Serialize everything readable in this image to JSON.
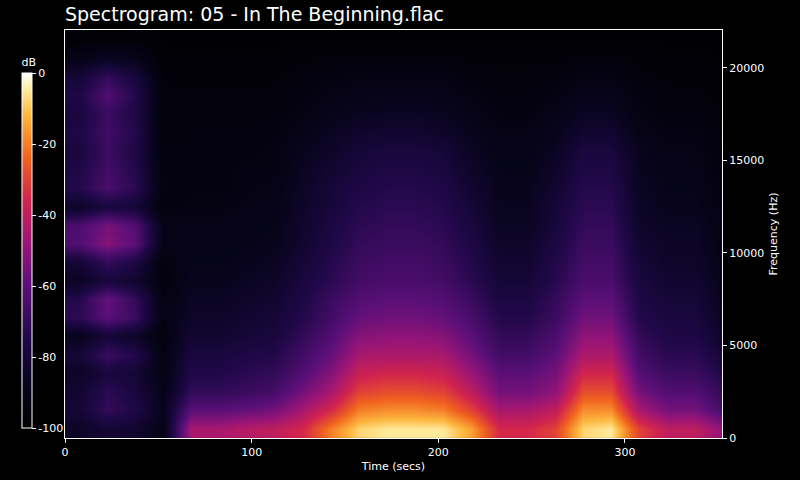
{
  "chart_data": {
    "type": "heatmap",
    "title": "Spectrogram: 05 - In The Beginning.flac",
    "x_label": "Time (secs)",
    "y_label": "Frequency (Hz)",
    "x": [
      7.5,
      22.5,
      37.5,
      52.5,
      67.5,
      82.5,
      97.5,
      112.5,
      127.5,
      142.5,
      157.5,
      172.5,
      187.5,
      202.5,
      217.5,
      232.5,
      247.5,
      262.5,
      277.5,
      292.5,
      307.5,
      322.5,
      337.5,
      352.5
    ],
    "y": [
      500,
      1500,
      2500,
      3500,
      4500,
      5500,
      6500,
      7500,
      8500,
      9500,
      10500,
      11500,
      12500,
      13500,
      14500,
      15500,
      16500,
      17500,
      18500,
      19500,
      20500,
      21500
    ],
    "z": [
      [
        -85,
        -80,
        -82,
        -90,
        -45,
        -45,
        -42,
        -40,
        -35,
        -20,
        -8,
        -5,
        -5,
        -5,
        -15,
        -35,
        -35,
        -30,
        -8,
        -5,
        -30,
        -40,
        -40,
        -50
      ],
      [
        -80,
        -70,
        -75,
        -88,
        -60,
        -60,
        -58,
        -55,
        -45,
        -35,
        -20,
        -18,
        -18,
        -20,
        -30,
        -45,
        -45,
        -40,
        -18,
        -18,
        -45,
        -55,
        -55,
        -65
      ],
      [
        -82,
        -72,
        -78,
        -90,
        -70,
        -70,
        -68,
        -65,
        -55,
        -45,
        -30,
        -28,
        -28,
        -30,
        -40,
        -55,
        -55,
        -50,
        -28,
        -28,
        -55,
        -62,
        -62,
        -70
      ],
      [
        -85,
        -78,
        -80,
        -92,
        -75,
        -75,
        -72,
        -70,
        -62,
        -52,
        -38,
        -36,
        -36,
        -38,
        -48,
        -60,
        -60,
        -55,
        -36,
        -36,
        -62,
        -68,
        -68,
        -75
      ],
      [
        -80,
        -68,
        -74,
        -92,
        -78,
        -78,
        -76,
        -74,
        -66,
        -58,
        -45,
        -44,
        -44,
        -45,
        -55,
        -66,
        -66,
        -60,
        -44,
        -44,
        -66,
        -72,
        -72,
        -80
      ],
      [
        -88,
        -80,
        -84,
        -94,
        -82,
        -82,
        -80,
        -78,
        -70,
        -62,
        -52,
        -50,
        -50,
        -52,
        -60,
        -70,
        -70,
        -64,
        -50,
        -50,
        -70,
        -76,
        -76,
        -84
      ],
      [
        -72,
        -60,
        -68,
        -92,
        -84,
        -84,
        -82,
        -80,
        -74,
        -66,
        -58,
        -56,
        -56,
        -58,
        -64,
        -74,
        -74,
        -68,
        -56,
        -56,
        -74,
        -78,
        -78,
        -86
      ],
      [
        -74,
        -58,
        -70,
        -92,
        -86,
        -86,
        -84,
        -82,
        -76,
        -68,
        -62,
        -60,
        -60,
        -62,
        -68,
        -77,
        -77,
        -70,
        -60,
        -60,
        -76,
        -80,
        -80,
        -88
      ],
      [
        -86,
        -78,
        -82,
        -94,
        -88,
        -88,
        -86,
        -84,
        -78,
        -72,
        -66,
        -64,
        -64,
        -66,
        -72,
        -80,
        -80,
        -73,
        -64,
        -64,
        -78,
        -82,
        -82,
        -89
      ],
      [
        -80,
        -70,
        -76,
        -94,
        -89,
        -89,
        -88,
        -86,
        -80,
        -74,
        -68,
        -66,
        -66,
        -68,
        -74,
        -82,
        -82,
        -75,
        -66,
        -66,
        -80,
        -84,
        -84,
        -90
      ],
      [
        -62,
        -52,
        -60,
        -90,
        -90,
        -90,
        -89,
        -88,
        -82,
        -76,
        -70,
        -68,
        -68,
        -70,
        -76,
        -84,
        -84,
        -77,
        -68,
        -68,
        -82,
        -85,
        -85,
        -91
      ],
      [
        -64,
        -55,
        -62,
        -90,
        -91,
        -91,
        -90,
        -89,
        -83,
        -77,
        -72,
        -70,
        -70,
        -72,
        -78,
        -86,
        -86,
        -79,
        -70,
        -70,
        -84,
        -86,
        -86,
        -92
      ],
      [
        -84,
        -78,
        -80,
        -94,
        -92,
        -92,
        -91,
        -90,
        -84,
        -79,
        -74,
        -72,
        -72,
        -74,
        -80,
        -87,
        -87,
        -80,
        -72,
        -72,
        -85,
        -88,
        -88,
        -93
      ],
      [
        -74,
        -64,
        -72,
        -94,
        -93,
        -93,
        -92,
        -91,
        -85,
        -80,
        -76,
        -74,
        -74,
        -76,
        -82,
        -88,
        -88,
        -82,
        -74,
        -74,
        -86,
        -89,
        -89,
        -94
      ],
      [
        -76,
        -66,
        -74,
        -94,
        -93,
        -93,
        -92,
        -92,
        -86,
        -82,
        -78,
        -76,
        -76,
        -78,
        -84,
        -89,
        -89,
        -84,
        -76,
        -76,
        -87,
        -90,
        -90,
        -94
      ],
      [
        -78,
        -68,
        -76,
        -94,
        -94,
        -94,
        -93,
        -92,
        -88,
        -84,
        -80,
        -78,
        -78,
        -80,
        -86,
        -90,
        -90,
        -86,
        -78,
        -78,
        -88,
        -91,
        -91,
        -95
      ],
      [
        -76,
        -66,
        -74,
        -95,
        -94,
        -94,
        -94,
        -93,
        -90,
        -86,
        -83,
        -82,
        -82,
        -84,
        -88,
        -91,
        -91,
        -88,
        -82,
        -82,
        -90,
        -92,
        -92,
        -95
      ],
      [
        -78,
        -68,
        -76,
        -95,
        -95,
        -95,
        -95,
        -94,
        -92,
        -89,
        -87,
        -86,
        -86,
        -87,
        -90,
        -93,
        -93,
        -90,
        -86,
        -86,
        -92,
        -94,
        -94,
        -96
      ],
      [
        -76,
        -62,
        -74,
        -95,
        -95,
        -95,
        -95,
        -95,
        -93,
        -91,
        -90,
        -89,
        -89,
        -90,
        -92,
        -94,
        -94,
        -92,
        -89,
        -89,
        -93,
        -95,
        -95,
        -96
      ],
      [
        -80,
        -70,
        -78,
        -96,
        -96,
        -96,
        -96,
        -96,
        -94,
        -93,
        -92,
        -92,
        -92,
        -92,
        -94,
        -95,
        -95,
        -94,
        -92,
        -92,
        -95,
        -96,
        -96,
        -97
      ],
      [
        -90,
        -86,
        -88,
        -97,
        -97,
        -97,
        -97,
        -97,
        -96,
        -95,
        -95,
        -95,
        -95,
        -95,
        -96,
        -96,
        -96,
        -96,
        -95,
        -95,
        -96,
        -97,
        -97,
        -98
      ],
      [
        -97,
        -96,
        -96,
        -98,
        -98,
        -98,
        -98,
        -98,
        -98,
        -98,
        -98,
        -98,
        -98,
        -98,
        -98,
        -98,
        -98,
        -98,
        -98,
        -98,
        -98,
        -98,
        -98,
        -98
      ]
    ],
    "xlim": [
      0,
      352
    ],
    "ylim": [
      0,
      22050
    ],
    "xticks": [
      0,
      100,
      200,
      300
    ],
    "yticks": [
      0,
      5000,
      10000,
      15000,
      20000
    ],
    "colorbar": {
      "title": "dB",
      "range": [
        -100,
        0
      ],
      "ticks": [
        0,
        -20,
        -40,
        -60,
        -80,
        -100
      ]
    }
  }
}
